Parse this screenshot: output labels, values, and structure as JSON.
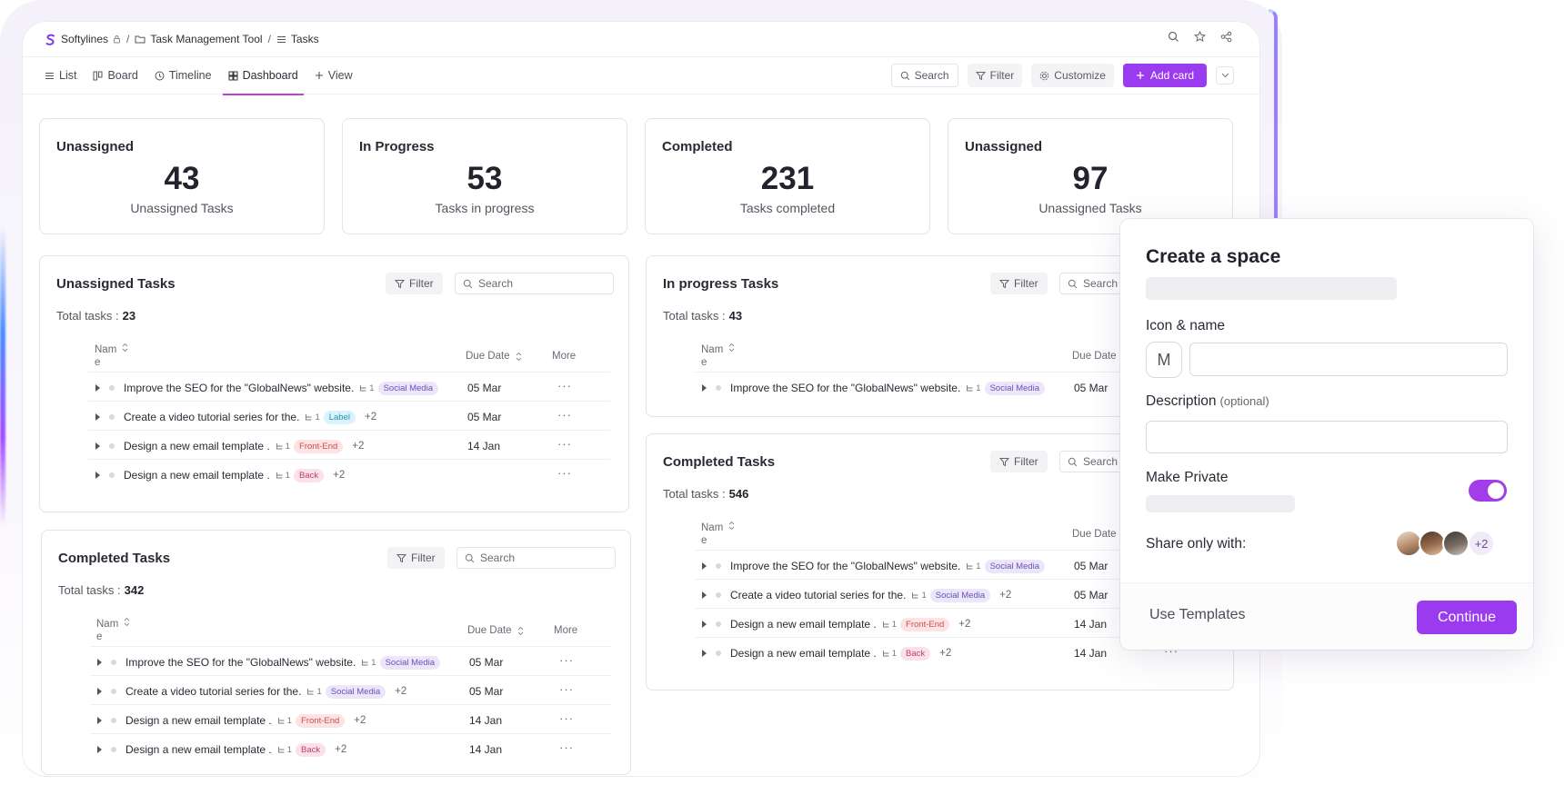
{
  "breadcrumb": {
    "workspace": "Softylines",
    "project": "Task Management Tool",
    "page": "Tasks"
  },
  "tabs": [
    {
      "label": "List",
      "icon": "list-icon"
    },
    {
      "label": "Board",
      "icon": "board-icon"
    },
    {
      "label": "Timeline",
      "icon": "clock-icon"
    },
    {
      "label": "Dashboard",
      "icon": "dashboard-icon",
      "active": true
    },
    {
      "label": "View",
      "icon": "plus-icon"
    }
  ],
  "actions": {
    "search": "Search",
    "filter": "Filter",
    "customize": "Customize",
    "add_card": "Add card"
  },
  "stats": [
    {
      "title": "Unassigned",
      "value": "43",
      "subtitle": "Unassigned Tasks"
    },
    {
      "title": "In Progress",
      "value": "53",
      "subtitle": "Tasks in progress"
    },
    {
      "title": "Completed",
      "value": "231",
      "subtitle": "Tasks completed"
    },
    {
      "title": "Unassigned",
      "value": "97",
      "subtitle": "Unassigned Tasks"
    }
  ],
  "table_headers": {
    "name_top": "Nam",
    "name_bottom": "e",
    "due": "Due Date",
    "more": "More"
  },
  "panels": {
    "unassigned": {
      "title": "Unassigned Tasks",
      "filter": "Filter",
      "search_placeholder": "Search",
      "total_label": "Total tasks :",
      "total": "23",
      "rows": [
        {
          "name": "Improve the SEO for the \"GlobalNews\" website.",
          "subcount": "1",
          "tag": "Social Media",
          "extra": "",
          "due": "05 Mar"
        },
        {
          "name": "Create a video tutorial series for the.",
          "subcount": "1",
          "tag": "Label",
          "extra": "+2",
          "due": "05 Mar"
        },
        {
          "name": "Design a new email template .",
          "subcount": "1",
          "tag": "Front-End",
          "extra": "+2",
          "due": "14 Jan"
        },
        {
          "name": "Design a new email template .",
          "subcount": "1",
          "tag": "Back",
          "extra": "+2",
          "due": ""
        }
      ]
    },
    "completed_left": {
      "title": "Completed Tasks",
      "filter": "Filter",
      "search_placeholder": "Search",
      "total_label": "Total tasks :",
      "total": "342",
      "rows": [
        {
          "name": "Improve the SEO for the \"GlobalNews\" website.",
          "subcount": "1",
          "tag": "Social Media",
          "extra": "",
          "due": "05 Mar"
        },
        {
          "name": "Create a video tutorial series for the.",
          "subcount": "1",
          "tag": "Social Media",
          "extra": "+2",
          "due": "05 Mar"
        },
        {
          "name": "Design a new email template .",
          "subcount": "1",
          "tag": "Front-End",
          "extra": "+2",
          "due": "14 Jan"
        },
        {
          "name": "Design a new email template .",
          "subcount": "1",
          "tag": "Back",
          "extra": "+2",
          "due": "14 Jan"
        }
      ]
    },
    "in_progress": {
      "title": "In progress Tasks",
      "filter": "Filter",
      "search_placeholder": "Search",
      "total_label": "Total tasks :",
      "total": "43",
      "rows": [
        {
          "name": "Improve the SEO for the \"GlobalNews\" website.",
          "subcount": "1",
          "tag": "Social Media",
          "extra": "",
          "due": "05 Mar"
        }
      ]
    },
    "completed_right": {
      "title": "Completed Tasks",
      "filter": "Filter",
      "search_placeholder": "Search",
      "total_label": "Total tasks :",
      "total": "546",
      "rows": [
        {
          "name": "Improve the SEO for the \"GlobalNews\" website.",
          "subcount": "1",
          "tag": "Social Media",
          "extra": "",
          "due": "05 Mar"
        },
        {
          "name": "Create a video tutorial series for the.",
          "subcount": "1",
          "tag": "Social Media",
          "extra": "+2",
          "due": "05 Mar"
        },
        {
          "name": "Design a new email template .",
          "subcount": "1",
          "tag": "Front-End",
          "extra": "+2",
          "due": "14 Jan"
        },
        {
          "name": "Design a new email template .",
          "subcount": "1",
          "tag": "Back",
          "extra": "+2",
          "due": "14 Jan"
        }
      ]
    }
  },
  "modal": {
    "title": "Create a space",
    "icon_name_label": "Icon & name",
    "icon_letter": "M",
    "description_label": "Description",
    "description_hint": "(optional)",
    "private_label": "Make Private",
    "private_on": true,
    "share_label": "Share only with:",
    "share_extra": "+2",
    "use_templates": "Use Templates",
    "continue": "Continue"
  },
  "colors": {
    "accent": "#9b3bf0",
    "tab_underline": "#c03fd8"
  }
}
